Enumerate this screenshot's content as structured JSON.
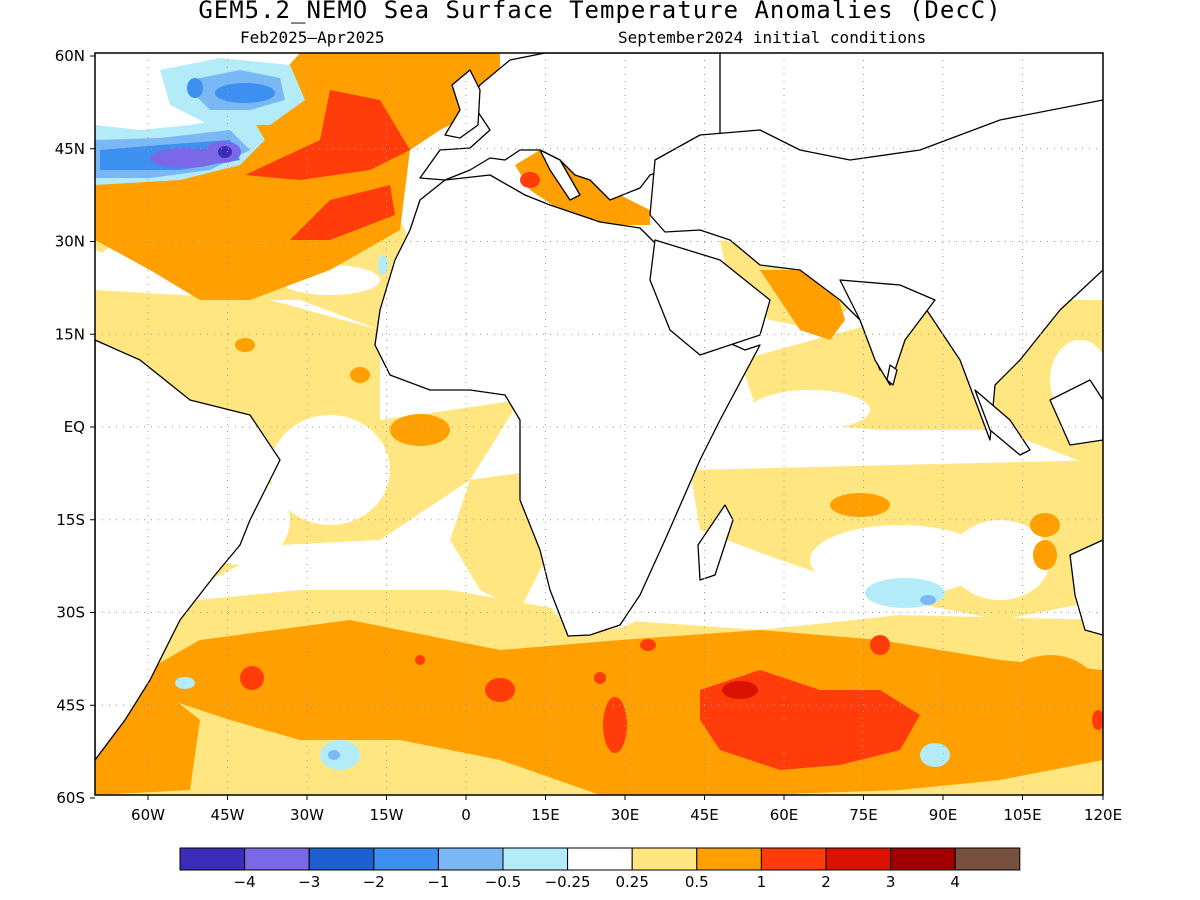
{
  "title": "GEM5.2_NEMO Sea Surface Temperature Anomalies (DecC)",
  "subtitle_left": "Feb2025–Apr2025",
  "subtitle_right": "September2024 initial conditions",
  "lat_labels": [
    "60N",
    "45N",
    "30N",
    "15N",
    "EQ",
    "15S",
    "30S",
    "45S",
    "60S"
  ],
  "lon_labels": [
    "60W",
    "45W",
    "30W",
    "15W",
    "0",
    "15E",
    "30E",
    "45E",
    "60E",
    "75E",
    "90E",
    "105E",
    "120E"
  ],
  "colorbar": {
    "colors": [
      "#3c2db8",
      "#7b68e8",
      "#1b5fd0",
      "#3d8ff0",
      "#7ab8f5",
      "#b3ecf8",
      "#ffffff",
      "#ffe680",
      "#ffa000",
      "#ff3c0a",
      "#dc1200",
      "#a00000",
      "#785040"
    ],
    "labels": [
      "−4",
      "−3",
      "−2",
      "−1",
      "−0.5",
      "−0.25",
      "0.25",
      "0.5",
      "1",
      "2",
      "3",
      "4"
    ]
  }
}
